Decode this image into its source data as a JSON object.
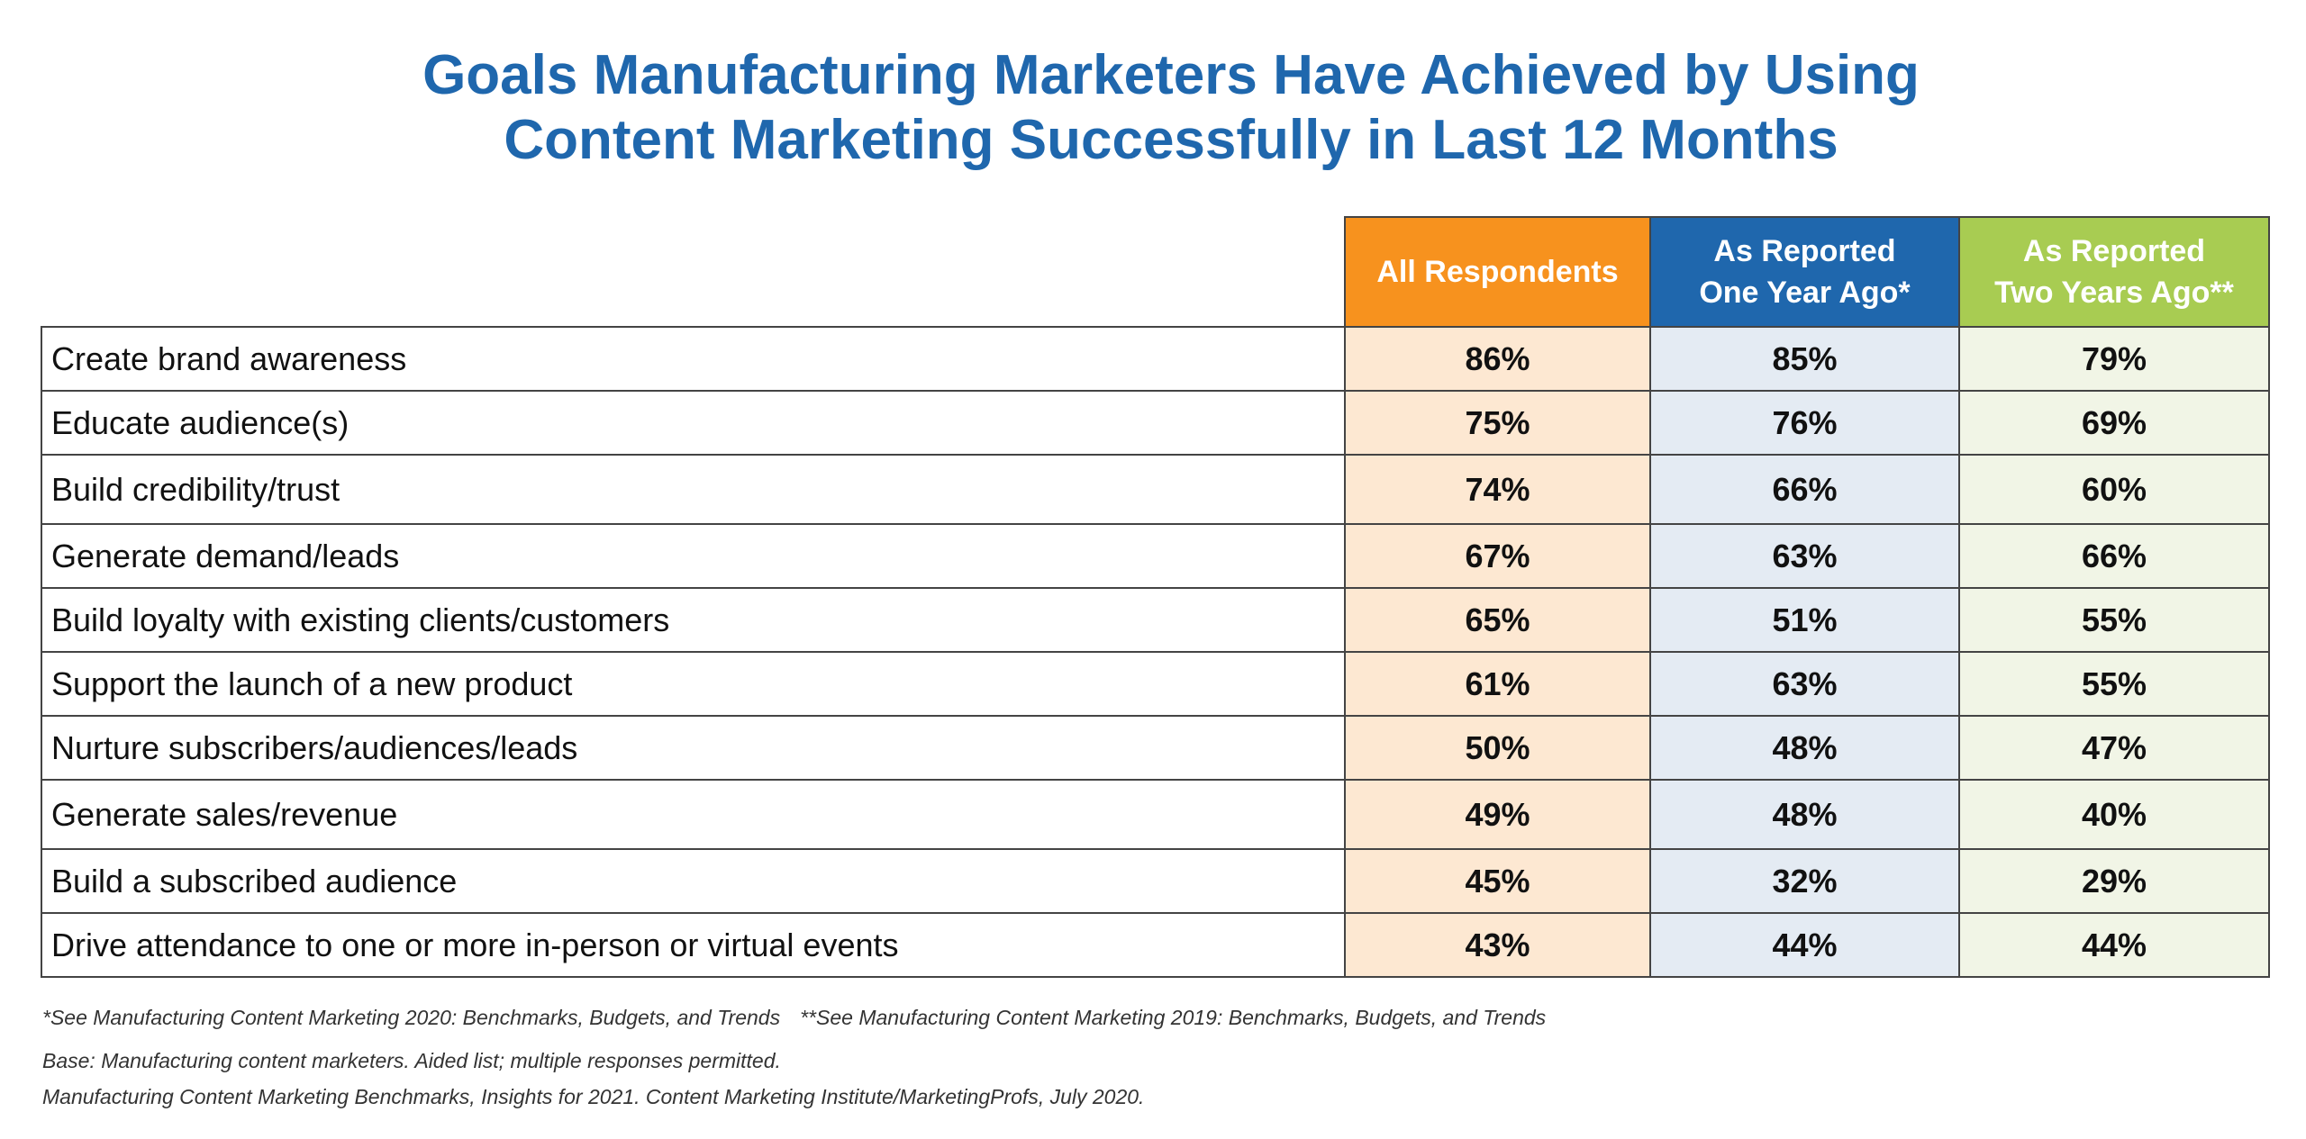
{
  "chart_data": {
    "type": "table",
    "title_lines": [
      "Goals Manufacturing Marketers Have Achieved by Using",
      "Content Marketing Successfully in Last 12 Months"
    ],
    "columns": [
      {
        "line1": "All Respondents",
        "line2": ""
      },
      {
        "line1": "As Reported",
        "line2": "One Year Ago*"
      },
      {
        "line1": "As Reported",
        "line2": "Two Years Ago**"
      }
    ],
    "column_colors": [
      "#f7921e",
      "#1f67ad",
      "#a8cc52"
    ],
    "rows": [
      {
        "label": "Create brand awareness",
        "values": [
          "86%",
          "85%",
          "79%"
        ]
      },
      {
        "label": "Educate audience(s)",
        "values": [
          "75%",
          "76%",
          "69%"
        ]
      },
      {
        "label": "Build credibility/trust",
        "values": [
          "74%",
          "66%",
          "60%"
        ]
      },
      {
        "label": "Generate demand/leads",
        "values": [
          "67%",
          "63%",
          "66%"
        ]
      },
      {
        "label": "Build loyalty with existing clients/customers",
        "values": [
          "65%",
          "51%",
          "55%"
        ]
      },
      {
        "label": "Support the launch of a new product",
        "values": [
          "61%",
          "63%",
          "55%"
        ]
      },
      {
        "label": "Nurture subscribers/audiences/leads",
        "values": [
          "50%",
          "48%",
          "47%"
        ]
      },
      {
        "label": "Generate sales/revenue",
        "values": [
          "49%",
          "48%",
          "40%"
        ]
      },
      {
        "label": "Build a subscribed audience",
        "values": [
          "45%",
          "32%",
          "29%"
        ]
      },
      {
        "label": "Drive attendance to one or more in-person or virtual events",
        "values": [
          "43%",
          "44%",
          "44%"
        ]
      }
    ]
  },
  "footnotes": {
    "note1": "*See Manufacturing Content Marketing 2020: Benchmarks, Budgets, and Trends",
    "note2": "**See Manufacturing Content Marketing 2019: Benchmarks, Budgets, and Trends",
    "base": "Base: Manufacturing content marketers. Aided list; multiple responses permitted.",
    "source": "Manufacturing Content Marketing Benchmarks, Insights for 2021. Content Marketing Institute/MarketingProfs, July 2020."
  }
}
